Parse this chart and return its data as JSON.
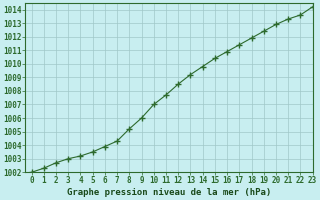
{
  "x": [
    0,
    1,
    2,
    3,
    4,
    5,
    6,
    7,
    8,
    9,
    10,
    11,
    12,
    13,
    14,
    15,
    16,
    17,
    18,
    19,
    20,
    21,
    22,
    23
  ],
  "y": [
    1002.0,
    1002.3,
    1002.7,
    1003.0,
    1003.2,
    1003.5,
    1003.9,
    1004.3,
    1005.2,
    1006.0,
    1007.0,
    1007.7,
    1008.5,
    1009.2,
    1009.8,
    1010.4,
    1010.9,
    1011.4,
    1011.9,
    1012.4,
    1012.9,
    1013.3,
    1013.6,
    1014.2
  ],
  "line_color": "#2d6a2d",
  "marker": "+",
  "marker_color": "#2d6a2d",
  "bg_color": "#c8eef0",
  "grid_color": "#a0c8c8",
  "xlabel": "Graphe pression niveau de la mer (hPa)",
  "xlabel_color": "#1a4a1a",
  "ylim": [
    1002,
    1014
  ],
  "xlim": [
    -0.5,
    23
  ],
  "yticks": [
    1002,
    1003,
    1004,
    1005,
    1006,
    1007,
    1008,
    1009,
    1010,
    1011,
    1012,
    1013,
    1014
  ],
  "xticks": [
    0,
    1,
    2,
    3,
    4,
    5,
    6,
    7,
    8,
    9,
    10,
    11,
    12,
    13,
    14,
    15,
    16,
    17,
    18,
    19,
    20,
    21,
    22,
    23
  ],
  "tick_label_color": "#2d6a2d",
  "spine_color": "#2d6a2d",
  "linewidth": 0.8,
  "markersize": 4,
  "tick_fontsize": 5.5,
  "xlabel_fontsize": 6.5
}
